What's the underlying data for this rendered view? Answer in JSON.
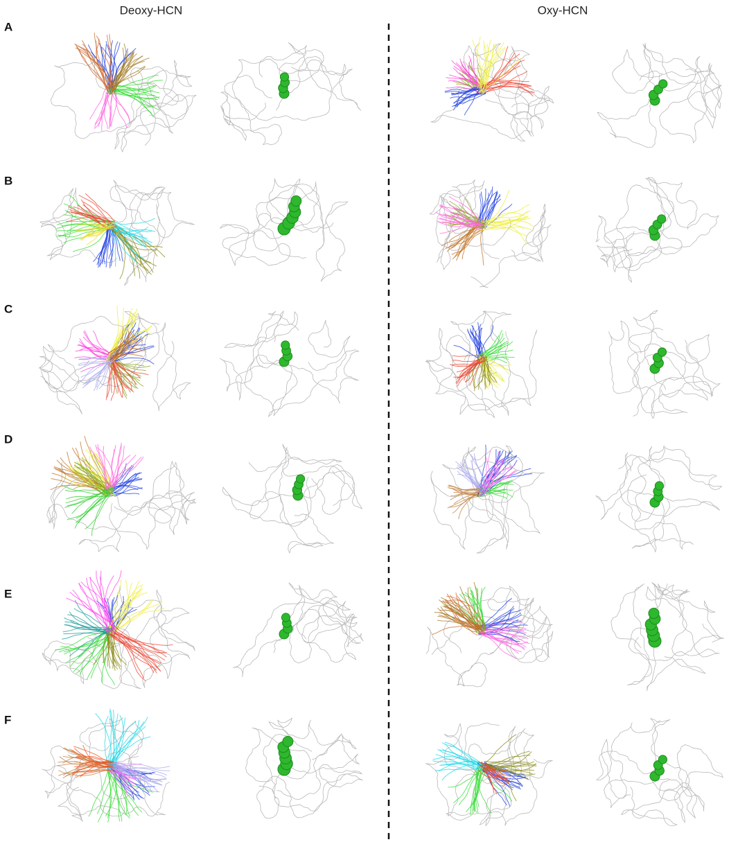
{
  "header": {
    "columns": [
      "Deoxy-HCN",
      "Oxy-HCN"
    ]
  },
  "row_labels": [
    "A",
    "B",
    "C",
    "D",
    "E",
    "F"
  ]
}
